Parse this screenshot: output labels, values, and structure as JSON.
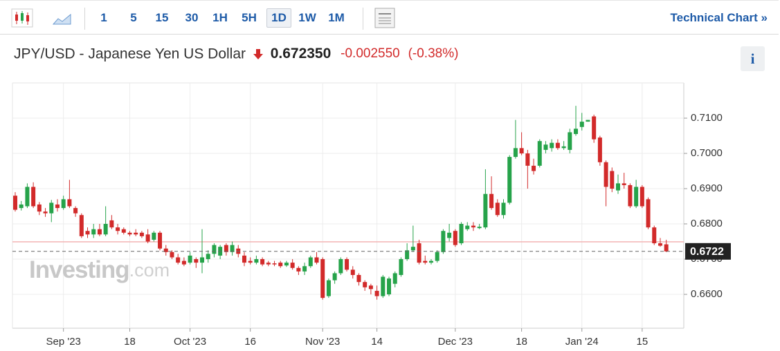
{
  "toolbar": {
    "intervals": [
      "1",
      "5",
      "15",
      "30",
      "1H",
      "5H",
      "1D",
      "1W",
      "1M"
    ],
    "active_index": 6,
    "link": "Technical Chart",
    "link_arrow": "»"
  },
  "header": {
    "symbol": "JPY/USD - Japanese Yen US Dollar",
    "price": "0.672350",
    "change": "-0.002550",
    "change_pct": "(-0.38%)",
    "info": "i"
  },
  "watermark": {
    "brand": "Investing",
    "suffix": ".com"
  },
  "chart_data": {
    "type": "candlestick",
    "up_color": "#26a34a",
    "down_color": "#d22a2a",
    "categories": [
      null,
      null,
      null,
      null,
      null,
      null,
      null,
      null,
      "Sep '23",
      null,
      null,
      null,
      null,
      null,
      null,
      null,
      null,
      null,
      null,
      "18",
      null,
      null,
      null,
      null,
      null,
      null,
      null,
      null,
      null,
      "Oct '23",
      null,
      null,
      null,
      null,
      null,
      null,
      null,
      null,
      null,
      "16",
      null,
      null,
      null,
      null,
      null,
      null,
      null,
      null,
      null,
      null,
      null,
      "Nov '23",
      null,
      null,
      null,
      null,
      null,
      null,
      null,
      null,
      "14",
      null,
      null,
      null,
      null,
      null,
      null,
      null,
      null,
      null,
      null,
      null,
      null,
      "Dec '23",
      null,
      null,
      null,
      null,
      null,
      null,
      null,
      null,
      null,
      null,
      "18",
      null,
      null,
      null,
      null,
      null,
      null,
      null,
      null,
      null,
      "Jan '24",
      null,
      null,
      null,
      null,
      null,
      null,
      null,
      null,
      null,
      "15",
      null,
      null,
      null,
      null
    ],
    "open": [
      0.688,
      0.6845,
      0.685,
      0.6905,
      0.6855,
      0.6835,
      0.683,
      0.6855,
      0.6845,
      0.687,
      0.6845,
      0.6825,
      0.678,
      0.677,
      0.6785,
      0.677,
      0.681,
      0.679,
      0.6785,
      0.6775,
      0.6775,
      0.6775,
      0.677,
      0.6755,
      0.6775,
      0.673,
      0.672,
      0.6705,
      0.6695,
      0.669,
      0.67,
      0.669,
      0.67,
      0.6715,
      0.671,
      0.674,
      0.672,
      0.673,
      0.671,
      0.6695,
      0.669,
      0.67,
      0.669,
      0.6688,
      0.669,
      0.6682,
      0.669,
      0.6675,
      0.6665,
      0.668,
      0.6705,
      0.67,
      0.6595,
      0.664,
      0.666,
      0.67,
      0.667,
      0.6655,
      0.6635,
      0.6625,
      0.661,
      0.6595,
      0.66,
      0.663,
      0.6655,
      0.67,
      0.6725,
      0.6745,
      0.6695,
      0.669,
      0.6695,
      0.672,
      0.676,
      0.678,
      0.6745,
      0.6785,
      0.6795,
      0.6788,
      0.679,
      0.6885,
      0.686,
      0.6825,
      0.686,
      0.699,
      0.7015,
      0.7,
      0.6965,
      0.6965,
      0.701,
      0.7015,
      0.703,
      0.7015,
      0.701,
      0.7055,
      0.7075,
      0.709,
      0.7105,
      0.7045,
      0.6975,
      0.695,
      0.6895,
      0.6915,
      0.691,
      0.685,
      0.6905,
      0.687,
      0.679,
      0.6745,
      0.6742
    ],
    "high": [
      0.689,
      0.6865,
      0.6915,
      0.6918,
      0.6862,
      0.6845,
      0.6868,
      0.687,
      0.688,
      0.6925,
      0.685,
      0.683,
      0.679,
      0.68,
      0.68,
      0.685,
      0.6825,
      0.68,
      0.679,
      0.678,
      0.6785,
      0.678,
      0.6785,
      0.678,
      0.678,
      0.674,
      0.6725,
      0.6715,
      0.6705,
      0.672,
      0.6705,
      0.6785,
      0.6725,
      0.6745,
      0.674,
      0.6745,
      0.675,
      0.674,
      0.672,
      0.6705,
      0.671,
      0.6705,
      0.6695,
      0.6695,
      0.6695,
      0.6695,
      0.67,
      0.668,
      0.669,
      0.671,
      0.672,
      0.6705,
      0.6645,
      0.6665,
      0.6705,
      0.6705,
      0.668,
      0.666,
      0.664,
      0.663,
      0.6625,
      0.6655,
      0.665,
      0.6665,
      0.6705,
      0.6745,
      0.6795,
      0.6755,
      0.671,
      0.67,
      0.6725,
      0.6785,
      0.68,
      0.6785,
      0.6805,
      0.6805,
      0.6805,
      0.68,
      0.6955,
      0.6935,
      0.687,
      0.687,
      0.6995,
      0.7095,
      0.706,
      0.701,
      0.6985,
      0.704,
      0.7035,
      0.704,
      0.704,
      0.7035,
      0.707,
      0.7135,
      0.7115,
      0.7095,
      0.711,
      0.705,
      0.698,
      0.696,
      0.694,
      0.6945,
      0.6915,
      0.6925,
      0.691,
      0.6875,
      0.6795,
      0.676,
      0.6755
    ],
    "low": [
      0.6835,
      0.6838,
      0.6845,
      0.6845,
      0.6825,
      0.682,
      0.6805,
      0.6835,
      0.684,
      0.6845,
      0.682,
      0.676,
      0.676,
      0.676,
      0.6765,
      0.6765,
      0.6785,
      0.677,
      0.677,
      0.6765,
      0.6765,
      0.676,
      0.6745,
      0.675,
      0.6725,
      0.671,
      0.67,
      0.6685,
      0.668,
      0.6685,
      0.6675,
      0.666,
      0.669,
      0.6705,
      0.67,
      0.671,
      0.671,
      0.6705,
      0.668,
      0.6685,
      0.6685,
      0.668,
      0.668,
      0.668,
      0.6675,
      0.6678,
      0.667,
      0.6655,
      0.6655,
      0.6675,
      0.6685,
      0.6585,
      0.659,
      0.663,
      0.6655,
      0.6665,
      0.6645,
      0.6625,
      0.661,
      0.66,
      0.6585,
      0.659,
      0.6595,
      0.662,
      0.665,
      0.6695,
      0.672,
      0.6685,
      0.6685,
      0.6685,
      0.669,
      0.6715,
      0.675,
      0.6735,
      0.674,
      0.678,
      0.678,
      0.6785,
      0.6785,
      0.684,
      0.682,
      0.6815,
      0.6855,
      0.6985,
      0.6995,
      0.69,
      0.694,
      0.696,
      0.7,
      0.7005,
      0.701,
      0.701,
      0.7,
      0.705,
      0.7065,
      0.709,
      0.703,
      0.6965,
      0.685,
      0.689,
      0.6885,
      0.69,
      0.6845,
      0.6845,
      0.6845,
      0.6785,
      0.674,
      0.6735,
      0.672
    ],
    "close": [
      0.684,
      0.6855,
      0.6905,
      0.685,
      0.6835,
      0.683,
      0.686,
      0.6845,
      0.687,
      0.685,
      0.683,
      0.6765,
      0.677,
      0.6785,
      0.677,
      0.68,
      0.679,
      0.678,
      0.6775,
      0.677,
      0.677,
      0.6765,
      0.675,
      0.6775,
      0.673,
      0.672,
      0.6705,
      0.669,
      0.6685,
      0.671,
      0.669,
      0.6705,
      0.6715,
      0.674,
      0.6735,
      0.672,
      0.674,
      0.6715,
      0.669,
      0.669,
      0.67,
      0.6685,
      0.6685,
      0.6685,
      0.668,
      0.669,
      0.6675,
      0.6665,
      0.668,
      0.6705,
      0.669,
      0.659,
      0.664,
      0.666,
      0.67,
      0.667,
      0.6655,
      0.6635,
      0.662,
      0.6615,
      0.6595,
      0.665,
      0.6645,
      0.666,
      0.67,
      0.6725,
      0.6735,
      0.669,
      0.669,
      0.6695,
      0.672,
      0.678,
      0.6775,
      0.674,
      0.68,
      0.6795,
      0.679,
      0.6792,
      0.6885,
      0.6845,
      0.6825,
      0.686,
      0.699,
      0.7015,
      0.7,
      0.6965,
      0.695,
      0.7035,
      0.7025,
      0.703,
      0.7015,
      0.702,
      0.706,
      0.707,
      0.709,
      0.7095,
      0.704,
      0.6975,
      0.6905,
      0.69,
      0.6915,
      0.691,
      0.685,
      0.6905,
      0.685,
      0.679,
      0.6745,
      0.6738,
      0.6722
    ],
    "ylim": [
      0.6504,
      0.72
    ],
    "yticks": [
      {
        "value": 0.66,
        "label": "0.6600"
      },
      {
        "value": 0.67,
        "label": "0.6700"
      },
      {
        "value": 0.68,
        "label": "0.6800"
      },
      {
        "value": 0.69,
        "label": "0.6900"
      },
      {
        "value": 0.7,
        "label": "0.7000"
      },
      {
        "value": 0.71,
        "label": "0.7100"
      }
    ],
    "prev_close": 0.6749,
    "last_price": {
      "value": 0.6722,
      "label": "0.6722"
    },
    "grid": true
  }
}
